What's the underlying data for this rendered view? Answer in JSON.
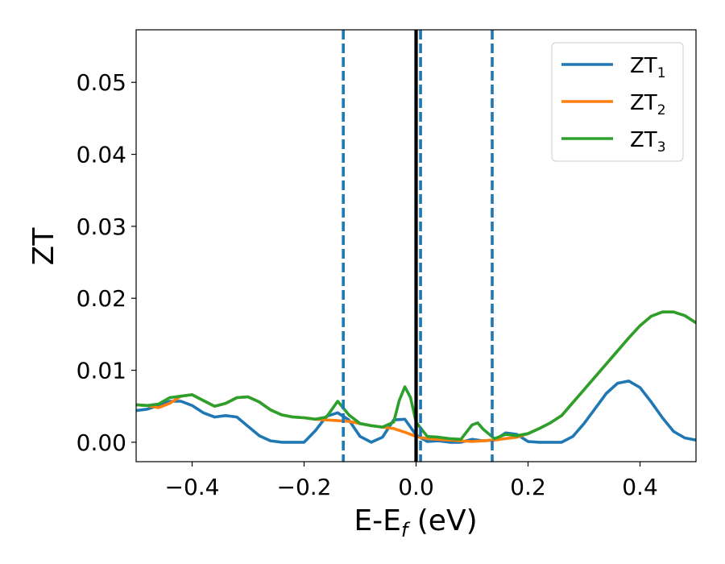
{
  "chart_data": {
    "type": "line",
    "title": "",
    "xlabel": "E-E",
    "xlabel_sub": "f",
    "xlabel_unit": " (eV)",
    "ylabel": "ZT",
    "xlim": [
      -0.5,
      0.5
    ],
    "ylim": [
      -0.0027,
      0.0573
    ],
    "xticks": [
      -0.4,
      -0.2,
      0.0,
      0.2,
      0.4
    ],
    "xtick_labels": [
      "−0.4",
      "−0.2",
      "0.0",
      "0.2",
      "0.4"
    ],
    "yticks": [
      0.0,
      0.01,
      0.02,
      0.03,
      0.04,
      0.05
    ],
    "ytick_labels": [
      "0.00",
      "0.01",
      "0.02",
      "0.03",
      "0.04",
      "0.05"
    ],
    "grid": false,
    "legend_position": "top-right",
    "vertical_lines": [
      {
        "x": 0.0,
        "style": "solid",
        "color": "#000000"
      },
      {
        "x": -0.13,
        "style": "dashed",
        "color": "#1f77b4"
      },
      {
        "x": 0.008,
        "style": "dashed",
        "color": "#1f77b4"
      },
      {
        "x": 0.136,
        "style": "dashed",
        "color": "#1f77b4"
      }
    ],
    "series": [
      {
        "name": "ZT",
        "name_sub": "1",
        "color": "#1f77b4",
        "x": [
          -0.5,
          -0.48,
          -0.46,
          -0.44,
          -0.42,
          -0.4,
          -0.38,
          -0.36,
          -0.34,
          -0.32,
          -0.3,
          -0.28,
          -0.26,
          -0.24,
          -0.22,
          -0.2,
          -0.18,
          -0.16,
          -0.14,
          -0.12,
          -0.1,
          -0.08,
          -0.06,
          -0.04,
          -0.02,
          0.0,
          0.02,
          0.04,
          0.06,
          0.08,
          0.1,
          0.12,
          0.14,
          0.16,
          0.18,
          0.2,
          0.22,
          0.24,
          0.26,
          0.28,
          0.3,
          0.32,
          0.34,
          0.36,
          0.38,
          0.4,
          0.42,
          0.44,
          0.46,
          0.48,
          0.5
        ],
        "y": [
          0.0044,
          0.0046,
          0.0051,
          0.0057,
          0.0057,
          0.0051,
          0.0041,
          0.0035,
          0.0037,
          0.0035,
          0.0022,
          0.0009,
          0.0002,
          0.0,
          0.0,
          0.0,
          0.0016,
          0.0036,
          0.0041,
          0.0031,
          0.0008,
          0.0,
          0.0007,
          0.0031,
          0.0032,
          0.001,
          0.0001,
          0.0002,
          0.0,
          0.0,
          0.0004,
          0.0002,
          0.0003,
          0.0013,
          0.0011,
          0.0001,
          0.0,
          0.0,
          0.0,
          0.0008,
          0.0026,
          0.0047,
          0.0068,
          0.0082,
          0.0085,
          0.0076,
          0.0056,
          0.0034,
          0.0015,
          0.0006,
          0.0003
        ]
      },
      {
        "name": "ZT",
        "name_sub": "2",
        "color": "#ff7f0e",
        "x": [
          -0.5,
          -0.48,
          -0.46,
          -0.44,
          -0.42,
          -0.4,
          -0.38,
          -0.36,
          -0.34,
          -0.32,
          -0.3,
          -0.28,
          -0.26,
          -0.24,
          -0.22,
          -0.2,
          -0.18,
          -0.16,
          -0.14,
          -0.12,
          -0.1,
          -0.08,
          -0.06,
          -0.04,
          -0.02,
          0.0,
          0.02,
          0.04,
          0.06,
          0.08,
          0.1,
          0.12,
          0.14,
          0.16,
          0.18,
          0.2,
          0.22,
          0.24,
          0.26,
          0.28,
          0.3,
          0.32,
          0.34,
          0.36,
          0.38,
          0.4,
          0.42,
          0.44,
          0.46,
          0.48,
          0.5
        ],
        "y": [
          0.0052,
          0.0051,
          0.0048,
          0.0054,
          0.0064,
          0.0066,
          0.0058,
          0.005,
          0.0054,
          0.0062,
          0.0063,
          0.0056,
          0.0045,
          0.0038,
          0.0035,
          0.0034,
          0.0032,
          0.0031,
          0.003,
          0.0029,
          0.0026,
          0.0023,
          0.0021,
          0.0019,
          0.0014,
          0.0008,
          0.0005,
          0.0004,
          0.0003,
          0.0002,
          0.0001,
          0.0002,
          0.0003,
          0.0005,
          0.0007,
          0.0012,
          0.0019,
          0.0027,
          0.0037,
          0.0055,
          0.0073,
          0.0091,
          0.0109,
          0.0127,
          0.0145,
          0.0162,
          0.0175,
          0.0181,
          0.0181,
          0.0176,
          0.0166
        ]
      },
      {
        "name": "ZT",
        "name_sub": "3",
        "color": "#2ca02c",
        "x": [
          -0.5,
          -0.48,
          -0.46,
          -0.44,
          -0.42,
          -0.4,
          -0.38,
          -0.36,
          -0.34,
          -0.32,
          -0.3,
          -0.28,
          -0.26,
          -0.24,
          -0.22,
          -0.2,
          -0.18,
          -0.16,
          -0.14,
          -0.12,
          -0.1,
          -0.08,
          -0.06,
          -0.04,
          -0.03,
          -0.02,
          -0.01,
          0.0,
          0.02,
          0.04,
          0.06,
          0.08,
          0.1,
          0.11,
          0.12,
          0.14,
          0.16,
          0.18,
          0.2,
          0.22,
          0.24,
          0.26,
          0.28,
          0.3,
          0.32,
          0.34,
          0.36,
          0.38,
          0.4,
          0.42,
          0.44,
          0.46,
          0.48,
          0.5
        ],
        "y": [
          0.0052,
          0.0051,
          0.0053,
          0.0062,
          0.0064,
          0.0066,
          0.0058,
          0.005,
          0.0054,
          0.0062,
          0.0063,
          0.0056,
          0.0045,
          0.0038,
          0.0035,
          0.0034,
          0.0032,
          0.0035,
          0.0057,
          0.0038,
          0.0026,
          0.0023,
          0.0021,
          0.0028,
          0.0058,
          0.0077,
          0.0062,
          0.0028,
          0.0008,
          0.0007,
          0.0005,
          0.0004,
          0.0024,
          0.0027,
          0.0018,
          0.0005,
          0.0011,
          0.0009,
          0.0012,
          0.0019,
          0.0027,
          0.0037,
          0.0055,
          0.0073,
          0.0091,
          0.0109,
          0.0127,
          0.0145,
          0.0162,
          0.0175,
          0.0181,
          0.0181,
          0.0176,
          0.0166
        ]
      }
    ]
  }
}
